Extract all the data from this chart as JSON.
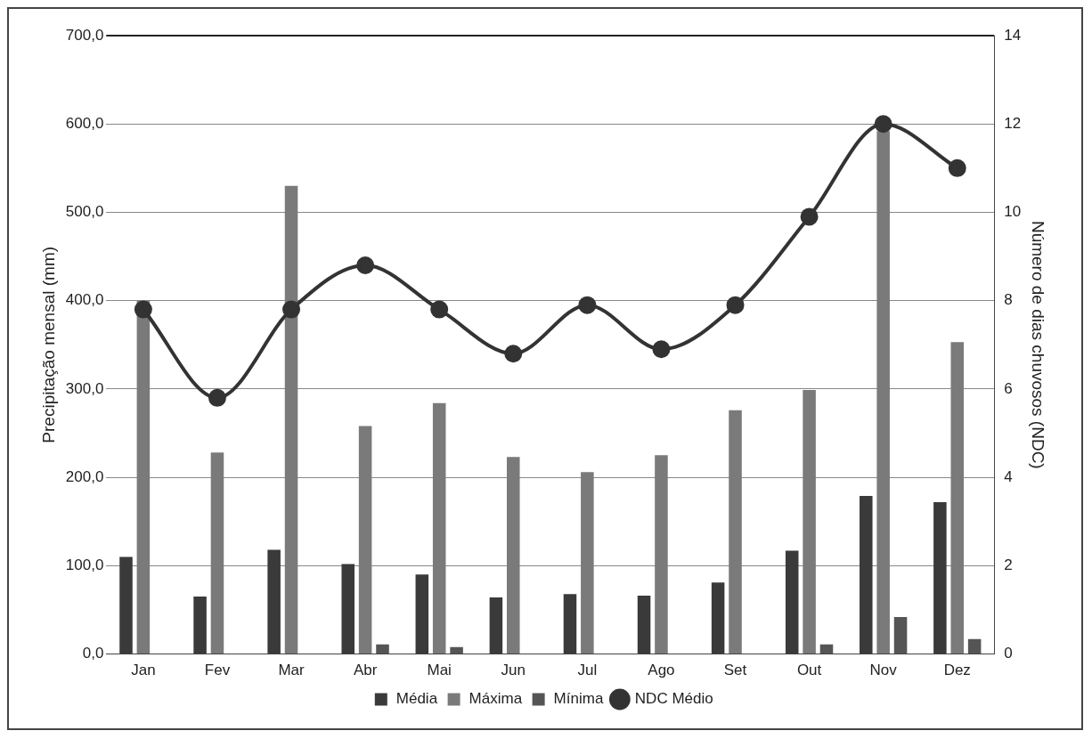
{
  "chart_data": {
    "type": "bar",
    "xlabel": null,
    "ylabel": "Precipitação mensal (mm)",
    "y2label": "Número de dias chuvosos (NDC)",
    "categories": [
      "Jan",
      "Fev",
      "Mar",
      "Abr",
      "Mai",
      "Jun",
      "Jul",
      "Ago",
      "Set",
      "Out",
      "Nov",
      "Dez"
    ],
    "series": [
      {
        "name": "Média",
        "color": "#3a3a3a",
        "values": [
          110,
          65,
          118,
          102,
          90,
          64,
          68,
          66,
          81,
          117,
          179,
          172
        ]
      },
      {
        "name": "Máxima",
        "color": "#7a7a7a",
        "values": [
          400,
          228,
          530,
          258,
          284,
          223,
          206,
          225,
          276,
          299,
          592,
          353
        ]
      },
      {
        "name": "Mínima",
        "color": "#555555",
        "values": [
          0,
          0,
          0,
          11,
          8,
          0,
          0,
          0,
          0,
          11,
          42,
          17
        ]
      },
      {
        "name": "NDC Médio",
        "type": "line",
        "axis": "y2",
        "color": "#333333",
        "marker": "circle",
        "values": [
          7.8,
          5.8,
          7.8,
          8.8,
          7.8,
          6.8,
          7.9,
          6.9,
          7.9,
          9.9,
          12.0,
          11.0
        ]
      }
    ],
    "ylim": [
      0,
      700
    ],
    "yticks": [
      {
        "value": 0,
        "label": "0,0"
      },
      {
        "value": 100,
        "label": "100,0"
      },
      {
        "value": 200,
        "label": "200,0"
      },
      {
        "value": 300,
        "label": "300,0"
      },
      {
        "value": 400,
        "label": "400,0"
      },
      {
        "value": 500,
        "label": "500,0"
      },
      {
        "value": 600,
        "label": "600,0"
      },
      {
        "value": 700,
        "label": "700,0"
      }
    ],
    "y2lim": [
      0,
      14
    ],
    "y2ticks": [
      0,
      2,
      4,
      6,
      8,
      10,
      12,
      14
    ],
    "grid": "y",
    "legend": "bottom"
  }
}
